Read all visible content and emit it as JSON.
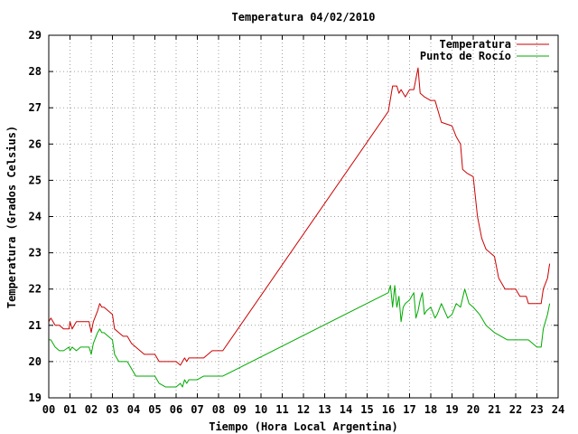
{
  "chart_data": {
    "type": "line",
    "title": "Temperatura 04/02/2010",
    "xlabel": "Tiempo (Hora Local Argentina)",
    "ylabel": "Temperatura (Grados Celsius)",
    "xlim": [
      0,
      24
    ],
    "ylim": [
      19,
      29
    ],
    "x_ticks": [
      "00",
      "01",
      "02",
      "03",
      "04",
      "05",
      "06",
      "07",
      "08",
      "09",
      "10",
      "11",
      "12",
      "13",
      "14",
      "15",
      "16",
      "17",
      "18",
      "19",
      "20",
      "21",
      "22",
      "23",
      "24"
    ],
    "y_ticks": [
      19,
      20,
      21,
      22,
      23,
      24,
      25,
      26,
      27,
      28,
      29
    ],
    "grid": true,
    "legend_position": "top-right",
    "series": [
      {
        "name": "Temperatura",
        "color": "#cc0000",
        "x": [
          0.0,
          0.1,
          0.2,
          0.3,
          0.5,
          0.7,
          0.95,
          1.0,
          1.1,
          1.3,
          1.5,
          1.7,
          1.9,
          2.0,
          2.1,
          2.3,
          2.4,
          2.5,
          2.6,
          2.8,
          3.0,
          3.1,
          3.3,
          3.5,
          3.7,
          3.9,
          4.1,
          4.3,
          4.5,
          4.7,
          5.0,
          5.2,
          5.5,
          5.8,
          6.0,
          6.2,
          6.3,
          6.4,
          6.5,
          6.6,
          6.8,
          7.0,
          7.3,
          7.5,
          7.7,
          7.9,
          8.0,
          8.2,
          16.0,
          16.2,
          16.4,
          16.5,
          16.6,
          16.8,
          17.0,
          17.2,
          17.3,
          17.4,
          17.5,
          17.7,
          18.0,
          18.2,
          18.3,
          18.5,
          19.0,
          19.2,
          19.4,
          19.5,
          19.7,
          20.0,
          20.2,
          20.4,
          20.6,
          20.8,
          21.0,
          21.2,
          21.5,
          21.8,
          22.0,
          22.2,
          22.5,
          22.6,
          23.0,
          23.2,
          23.3,
          23.5,
          23.6
        ],
        "y": [
          21.1,
          21.2,
          21.1,
          21.0,
          21.0,
          20.9,
          20.9,
          21.1,
          20.9,
          21.1,
          21.1,
          21.1,
          21.1,
          20.8,
          21.1,
          21.4,
          21.6,
          21.5,
          21.5,
          21.4,
          21.3,
          20.9,
          20.8,
          20.7,
          20.7,
          20.5,
          20.4,
          20.3,
          20.2,
          20.2,
          20.2,
          20.0,
          20.0,
          20.0,
          20.0,
          19.9,
          20.0,
          20.1,
          20.0,
          20.1,
          20.1,
          20.1,
          20.1,
          20.2,
          20.3,
          20.3,
          20.3,
          20.3,
          26.9,
          27.6,
          27.6,
          27.4,
          27.5,
          27.3,
          27.5,
          27.5,
          27.8,
          28.1,
          27.4,
          27.3,
          27.2,
          27.2,
          27.0,
          26.6,
          26.5,
          26.2,
          26.0,
          25.3,
          25.2,
          25.1,
          24.0,
          23.4,
          23.1,
          23.0,
          22.9,
          22.3,
          22.0,
          22.0,
          22.0,
          21.8,
          21.8,
          21.6,
          21.6,
          21.6,
          22.0,
          22.3,
          22.7
        ]
      },
      {
        "name": "Punto de Rocío",
        "color": "#00aa00",
        "x": [
          0.0,
          0.1,
          0.2,
          0.3,
          0.5,
          0.7,
          0.95,
          1.0,
          1.1,
          1.3,
          1.5,
          1.7,
          1.9,
          2.0,
          2.1,
          2.3,
          2.4,
          2.5,
          2.6,
          2.8,
          3.0,
          3.1,
          3.3,
          3.5,
          3.7,
          3.9,
          4.1,
          4.3,
          4.5,
          4.7,
          5.0,
          5.2,
          5.5,
          5.8,
          6.0,
          6.2,
          6.3,
          6.4,
          6.5,
          6.6,
          6.8,
          7.0,
          7.3,
          7.5,
          7.7,
          7.9,
          8.0,
          8.2,
          16.0,
          16.1,
          16.2,
          16.3,
          16.4,
          16.5,
          16.6,
          16.7,
          16.8,
          17.0,
          17.2,
          17.3,
          17.4,
          17.5,
          17.6,
          17.7,
          17.8,
          18.0,
          18.2,
          18.3,
          18.5,
          18.8,
          19.0,
          19.2,
          19.4,
          19.6,
          19.8,
          20.0,
          20.3,
          20.6,
          21.0,
          21.3,
          21.6,
          22.0,
          22.3,
          22.6,
          23.0,
          23.2,
          23.3,
          23.5,
          23.6
        ],
        "y": [
          20.6,
          20.6,
          20.5,
          20.4,
          20.3,
          20.3,
          20.4,
          20.3,
          20.4,
          20.3,
          20.4,
          20.4,
          20.4,
          20.2,
          20.5,
          20.8,
          20.9,
          20.8,
          20.8,
          20.7,
          20.6,
          20.2,
          20.0,
          20.0,
          20.0,
          19.8,
          19.6,
          19.6,
          19.6,
          19.6,
          19.6,
          19.4,
          19.3,
          19.3,
          19.3,
          19.4,
          19.3,
          19.5,
          19.4,
          19.5,
          19.5,
          19.5,
          19.6,
          19.6,
          19.6,
          19.6,
          19.6,
          19.6,
          21.9,
          22.1,
          21.5,
          22.1,
          21.5,
          21.8,
          21.1,
          21.5,
          21.6,
          21.7,
          21.9,
          21.2,
          21.4,
          21.7,
          21.9,
          21.3,
          21.4,
          21.5,
          21.2,
          21.3,
          21.6,
          21.2,
          21.3,
          21.6,
          21.5,
          22.0,
          21.6,
          21.5,
          21.3,
          21.0,
          20.8,
          20.7,
          20.6,
          20.6,
          20.6,
          20.6,
          20.4,
          20.4,
          20.9,
          21.3,
          21.6
        ]
      }
    ]
  }
}
